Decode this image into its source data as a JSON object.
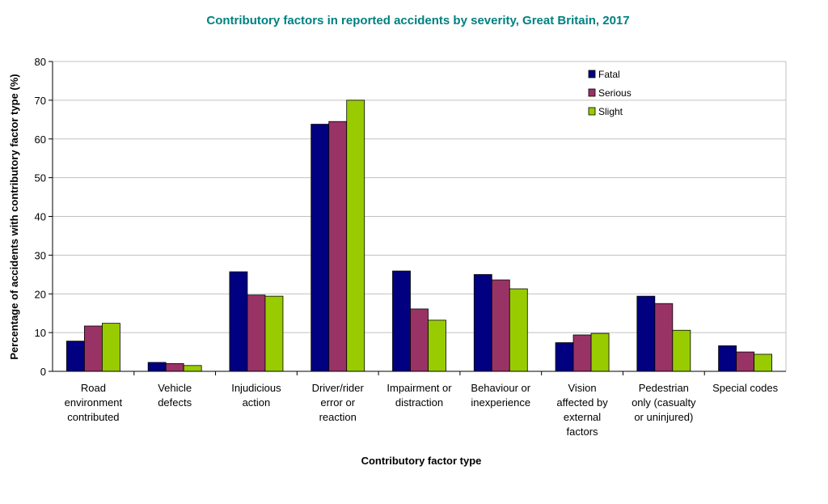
{
  "chart_data": {
    "type": "bar",
    "title": "Contributory factors in reported accidents by severity, Great Britain, 2017",
    "xlabel": "Contributory factor type",
    "ylabel": "Percentage of accidents with contributory factor type (%)",
    "ylim": [
      0,
      80
    ],
    "yticks": [
      0,
      10,
      20,
      30,
      40,
      50,
      60,
      70,
      80
    ],
    "grid": true,
    "legend_position": "top-right",
    "categories": [
      [
        "Road",
        "environment",
        "contributed"
      ],
      [
        "Vehicle",
        "defects"
      ],
      [
        "Injudicious",
        "action"
      ],
      [
        "Driver/rider",
        "error or",
        "reaction"
      ],
      [
        "Impairment or",
        "distraction"
      ],
      [
        "Behaviour or",
        "inexperience"
      ],
      [
        "Vision",
        "affected by",
        "external",
        "factors"
      ],
      [
        "Pedestrian",
        "only (casualty",
        "or uninjured)"
      ],
      [
        "Special codes"
      ]
    ],
    "series": [
      {
        "name": "Fatal",
        "color": "#000080",
        "values": [
          7.8,
          2.3,
          25.7,
          63.8,
          25.9,
          25.0,
          7.4,
          19.4,
          6.6
        ]
      },
      {
        "name": "Serious",
        "color": "#993366",
        "values": [
          11.7,
          2.0,
          19.7,
          64.5,
          16.1,
          23.6,
          9.4,
          17.5,
          5.0
        ]
      },
      {
        "name": "Slight",
        "color": "#99CC00",
        "values": [
          12.4,
          1.5,
          19.4,
          70.0,
          13.2,
          21.3,
          9.8,
          10.6,
          4.4
        ]
      }
    ]
  },
  "colors": {
    "title": "#008080",
    "grid": "#c0c0c0",
    "axis": "#000000"
  }
}
